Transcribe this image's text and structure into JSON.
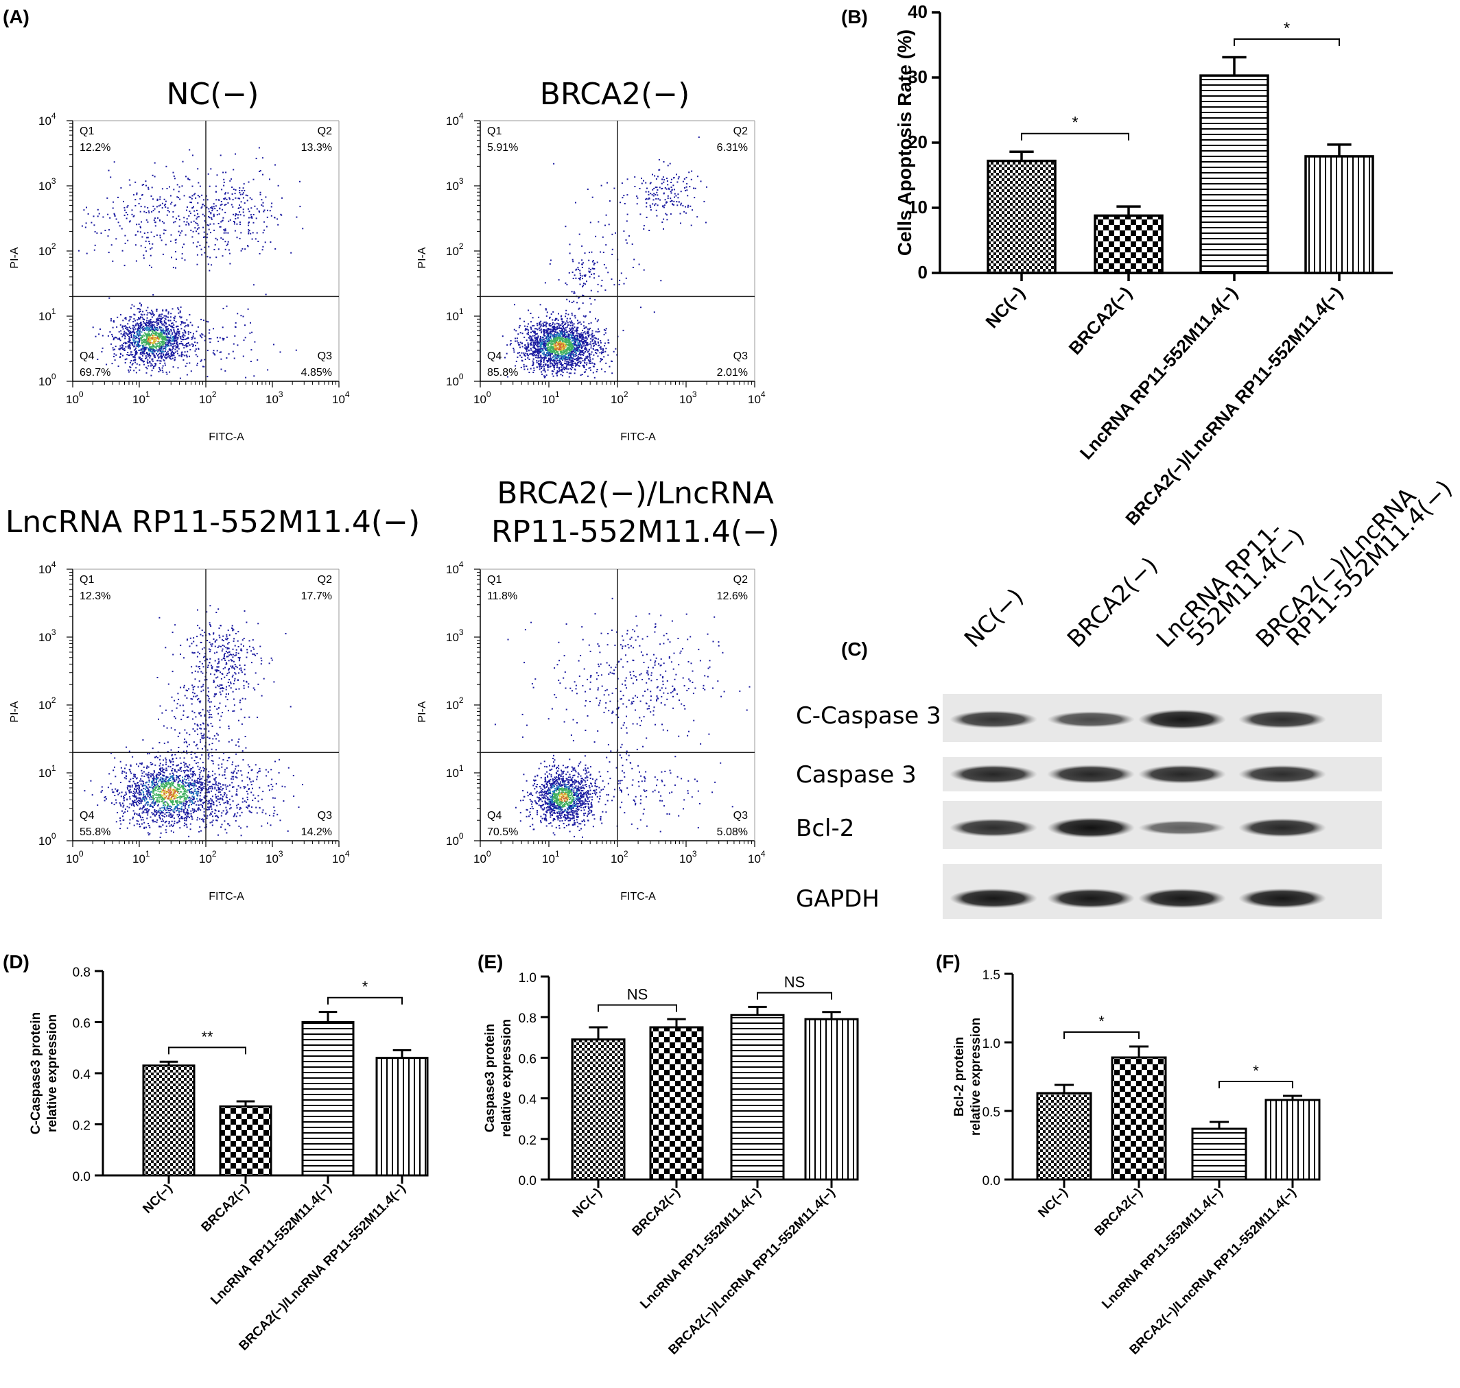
{
  "panels": {
    "A": "(A)",
    "B": "(B)",
    "C": "(C)",
    "D": "(D)",
    "E": "(E)",
    "F": "(F)"
  },
  "flow_common": {
    "x_axis_label": "FITC-A",
    "y_axis_label": "PI-A",
    "tick_base": "10",
    "tick_exponents": [
      "0",
      "1",
      "2",
      "3",
      "4"
    ],
    "quadrant_names": [
      "Q1",
      "Q2",
      "Q3",
      "Q4"
    ]
  },
  "chart_data": [
    {
      "type": "scatter",
      "panel": "A",
      "title": "NC(−)",
      "xlabel": "FITC-A",
      "ylabel": "PI-A",
      "scale": "log",
      "xlim": [
        1,
        10000
      ],
      "ylim": [
        1,
        10000
      ],
      "gate": {
        "x": 100,
        "y": 20
      },
      "quadrants": {
        "Q1": "12.2%",
        "Q2": "13.3%",
        "Q3": "4.85%",
        "Q4": "69.7%"
      }
    },
    {
      "type": "scatter",
      "panel": "A",
      "title": "BRCA2(−)",
      "xlabel": "FITC-A",
      "ylabel": "PI-A",
      "scale": "log",
      "xlim": [
        1,
        10000
      ],
      "ylim": [
        1,
        10000
      ],
      "gate": {
        "x": 100,
        "y": 20
      },
      "quadrants": {
        "Q1": "5.91%",
        "Q2": "6.31%",
        "Q3": "2.01%",
        "Q4": "85.8%"
      }
    },
    {
      "type": "scatter",
      "panel": "A",
      "title": "LncRNA RP11-552M11.4(−)",
      "xlabel": "FITC-A",
      "ylabel": "PI-A",
      "scale": "log",
      "xlim": [
        1,
        10000
      ],
      "ylim": [
        1,
        10000
      ],
      "gate": {
        "x": 100,
        "y": 20
      },
      "quadrants": {
        "Q1": "12.3%",
        "Q2": "17.7%",
        "Q3": "14.2%",
        "Q4": "55.8%"
      }
    },
    {
      "type": "scatter",
      "panel": "A",
      "title_lines": [
        "BRCA2(−)/LncRNA",
        "RP11-552M11.4(−)"
      ],
      "xlabel": "FITC-A",
      "ylabel": "PI-A",
      "scale": "log",
      "xlim": [
        1,
        10000
      ],
      "ylim": [
        1,
        10000
      ],
      "gate": {
        "x": 100,
        "y": 20
      },
      "quadrants": {
        "Q1": "11.8%",
        "Q2": "12.6%",
        "Q3": "5.08%",
        "Q4": "70.5%"
      }
    },
    {
      "type": "bar",
      "panel": "B",
      "categories": [
        "NC(−)",
        "BRCA2(−)",
        "LncRNA RP11-552M11.4(−)",
        "BRCA2(−)/LncRNA RP11-552M11.4(−)"
      ],
      "values": [
        17.2,
        8.8,
        30.3,
        17.9
      ],
      "errors": [
        1.4,
        1.4,
        2.8,
        1.8
      ],
      "ylabel": "Cells Apoptosis Rate (%)",
      "ylim": [
        0,
        40
      ],
      "yticks": [
        "0",
        "10",
        "20",
        "30",
        "40"
      ],
      "significance": [
        {
          "from": 0,
          "to": 1,
          "label": "*"
        },
        {
          "from": 2,
          "to": 3,
          "label": "*"
        }
      ]
    },
    {
      "type": "bar",
      "panel": "D",
      "categories": [
        "NC(−)",
        "BRCA2(−)",
        "LncRNA RP11-552M11.4(−)",
        "BRCA2(−)/LncRNA RP11-552M11.4(−)"
      ],
      "values": [
        0.43,
        0.27,
        0.6,
        0.46
      ],
      "errors": [
        0.015,
        0.02,
        0.04,
        0.03
      ],
      "ylabel_lines": [
        "C-Caspase3 protein",
        "relative expression"
      ],
      "ylim": [
        0,
        0.8
      ],
      "yticks": [
        "0.0",
        "0.2",
        "0.4",
        "0.6",
        "0.8"
      ],
      "significance": [
        {
          "from": 0,
          "to": 1,
          "label": "**"
        },
        {
          "from": 2,
          "to": 3,
          "label": "*"
        }
      ]
    },
    {
      "type": "bar",
      "panel": "E",
      "categories": [
        "NC(−)",
        "BRCA2(−)",
        "LncRNA RP11-552M11.4(−)",
        "BRCA2(−)/LncRNA RP11-552M11.4(−)"
      ],
      "values": [
        0.69,
        0.75,
        0.81,
        0.79
      ],
      "errors": [
        0.06,
        0.04,
        0.04,
        0.035
      ],
      "ylabel_lines": [
        "Caspase3 protein",
        "relative expression"
      ],
      "ylim": [
        0,
        1.0
      ],
      "yticks": [
        "0.0",
        "0.2",
        "0.4",
        "0.6",
        "0.8",
        "1.0"
      ],
      "significance": [
        {
          "from": 0,
          "to": 1,
          "label": "NS"
        },
        {
          "from": 2,
          "to": 3,
          "label": "NS"
        }
      ]
    },
    {
      "type": "bar",
      "panel": "F",
      "categories": [
        "NC(−)",
        "BRCA2(−)",
        "LncRNA RP11-552M11.4(−)",
        "BRCA2(−)/LncRNA RP11-552M11.4(−)"
      ],
      "values": [
        0.63,
        0.89,
        0.37,
        0.58
      ],
      "errors": [
        0.06,
        0.08,
        0.05,
        0.03
      ],
      "ylabel_lines": [
        "Bcl-2 protein",
        "relative expression"
      ],
      "ylim": [
        0,
        1.5
      ],
      "yticks": [
        "0.0",
        "0.5",
        "1.0",
        "1.5"
      ],
      "significance": [
        {
          "from": 0,
          "to": 1,
          "label": "*"
        },
        {
          "from": 2,
          "to": 3,
          "label": "*"
        }
      ]
    }
  ],
  "western": {
    "lanes": [
      [
        "NC(−)"
      ],
      [
        "BRCA2(−)"
      ],
      [
        "LncRNA RP11-",
        "552M11.4(−)"
      ],
      [
        "BRCA2(−)/LncRNA",
        "RP11-552M11.4(−)"
      ]
    ],
    "rows": [
      {
        "label": "C-Caspase 3",
        "intensity": [
          0.75,
          0.6,
          0.95,
          0.8
        ]
      },
      {
        "label": "Caspase 3",
        "intensity": [
          0.85,
          0.85,
          0.85,
          0.8
        ]
      },
      {
        "label": "Bcl-2",
        "intensity": [
          0.8,
          1.0,
          0.45,
          0.85
        ]
      },
      {
        "label": "GAPDH",
        "intensity": [
          0.95,
          0.95,
          0.95,
          0.95
        ]
      }
    ]
  }
}
